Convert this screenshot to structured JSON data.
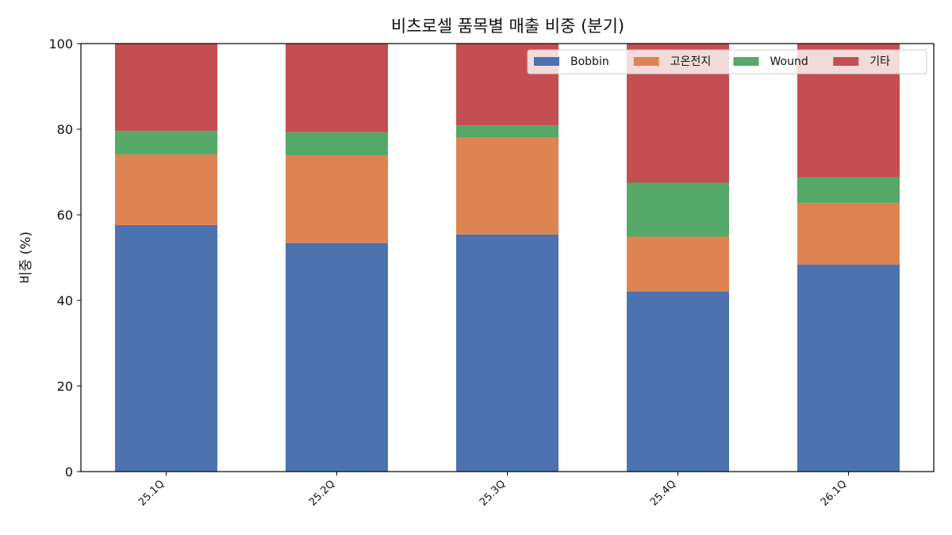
{
  "chart_data": {
    "type": "bar",
    "stacked": true,
    "title": "비츠로셀 품목별 매출 비중 (분기)",
    "xlabel": "",
    "ylabel": "비중 (%)",
    "ylim": [
      0,
      100
    ],
    "yticks": [
      0,
      20,
      40,
      60,
      80,
      100
    ],
    "grid": false,
    "legend_position": "top-right",
    "categories": [
      "25.1Q",
      "25.2Q",
      "25.3Q",
      "25.4Q",
      "26.1Q"
    ],
    "series": [
      {
        "name": "Bobbin",
        "color": "#4c72b0",
        "values": [
          57.6,
          53.4,
          55.4,
          42.1,
          48.4
        ]
      },
      {
        "name": "고온전지",
        "color": "#dd8452",
        "values": [
          16.5,
          20.5,
          22.6,
          12.8,
          14.4
        ]
      },
      {
        "name": "Wound",
        "color": "#55a868",
        "values": [
          5.5,
          5.4,
          2.9,
          12.6,
          6.0
        ]
      },
      {
        "name": "기타",
        "color": "#c44e52",
        "values": [
          20.4,
          20.7,
          19.1,
          32.5,
          31.2
        ]
      }
    ]
  }
}
